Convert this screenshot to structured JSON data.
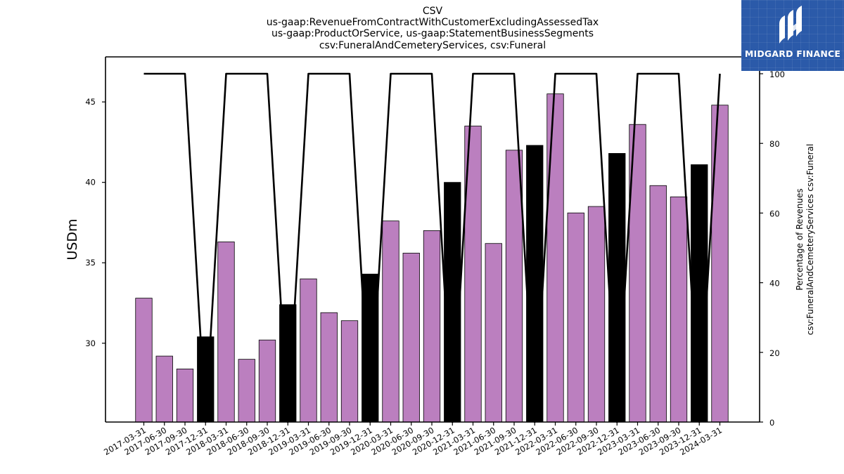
{
  "chart_data": {
    "type": "bar",
    "title_lines": [
      "CSV",
      "us-gaap:RevenueFromContractWithCustomerExcludingAssessedTax",
      "us-gaap:ProductOrService, us-gaap:StatementBusinessSegments",
      "csv:FuneralAndCemeteryServices, csv:Funeral"
    ],
    "ylabel": "USDm",
    "ylabel_right": [
      "Percentage of Revenues",
      "csv:FuneralAndCemeteryServices csv:Funeral"
    ],
    "categories": [
      "2017-03-31",
      "2017-06-30",
      "2017-09-30",
      "2017-12-31",
      "2018-03-31",
      "2018-06-30",
      "2018-09-30",
      "2018-12-31",
      "2019-03-31",
      "2019-06-30",
      "2019-09-30",
      "2019-12-31",
      "2020-03-31",
      "2020-06-30",
      "2020-09-30",
      "2020-12-31",
      "2021-03-31",
      "2021-06-30",
      "2021-09-30",
      "2021-12-31",
      "2022-03-31",
      "2022-06-30",
      "2022-09-30",
      "2022-12-31",
      "2023-03-31",
      "2023-06-30",
      "2023-09-30",
      "2023-12-31",
      "2024-03-31"
    ],
    "values": [
      32.8,
      29.2,
      28.4,
      30.4,
      36.3,
      29.0,
      30.2,
      32.4,
      34.0,
      31.9,
      31.4,
      34.3,
      37.6,
      35.6,
      37.0,
      40.0,
      43.5,
      36.2,
      42.0,
      42.3,
      45.5,
      38.1,
      38.5,
      41.8,
      43.6,
      39.8,
      39.1,
      41.1,
      44.8
    ],
    "highlight": [
      false,
      false,
      false,
      true,
      false,
      false,
      false,
      true,
      false,
      false,
      false,
      true,
      false,
      false,
      false,
      true,
      false,
      false,
      false,
      true,
      false,
      false,
      false,
      true,
      false,
      false,
      false,
      true,
      false
    ],
    "bar_color": "#bb7fbf",
    "highlight_color": "#000000",
    "ylim": [
      25.1,
      47.8
    ],
    "yticks": [
      30,
      35,
      40,
      45
    ],
    "line_series": {
      "axis": "right",
      "values": [
        100,
        100,
        100,
        0,
        100,
        100,
        100,
        0,
        100,
        100,
        100,
        0,
        100,
        100,
        100,
        0,
        100,
        100,
        100,
        0,
        100,
        100,
        100,
        0,
        100,
        100,
        100,
        0,
        100
      ],
      "color": "#000000"
    },
    "ylim_right": [
      0,
      105
    ],
    "yticks_right": [
      0,
      20,
      40,
      60,
      80,
      100
    ],
    "grid": false,
    "legend": "none"
  },
  "brand": {
    "name": "MIDGARD FINANCE",
    "logo_icon": "midgard-logo-icon",
    "background": "#2b5aa9"
  }
}
